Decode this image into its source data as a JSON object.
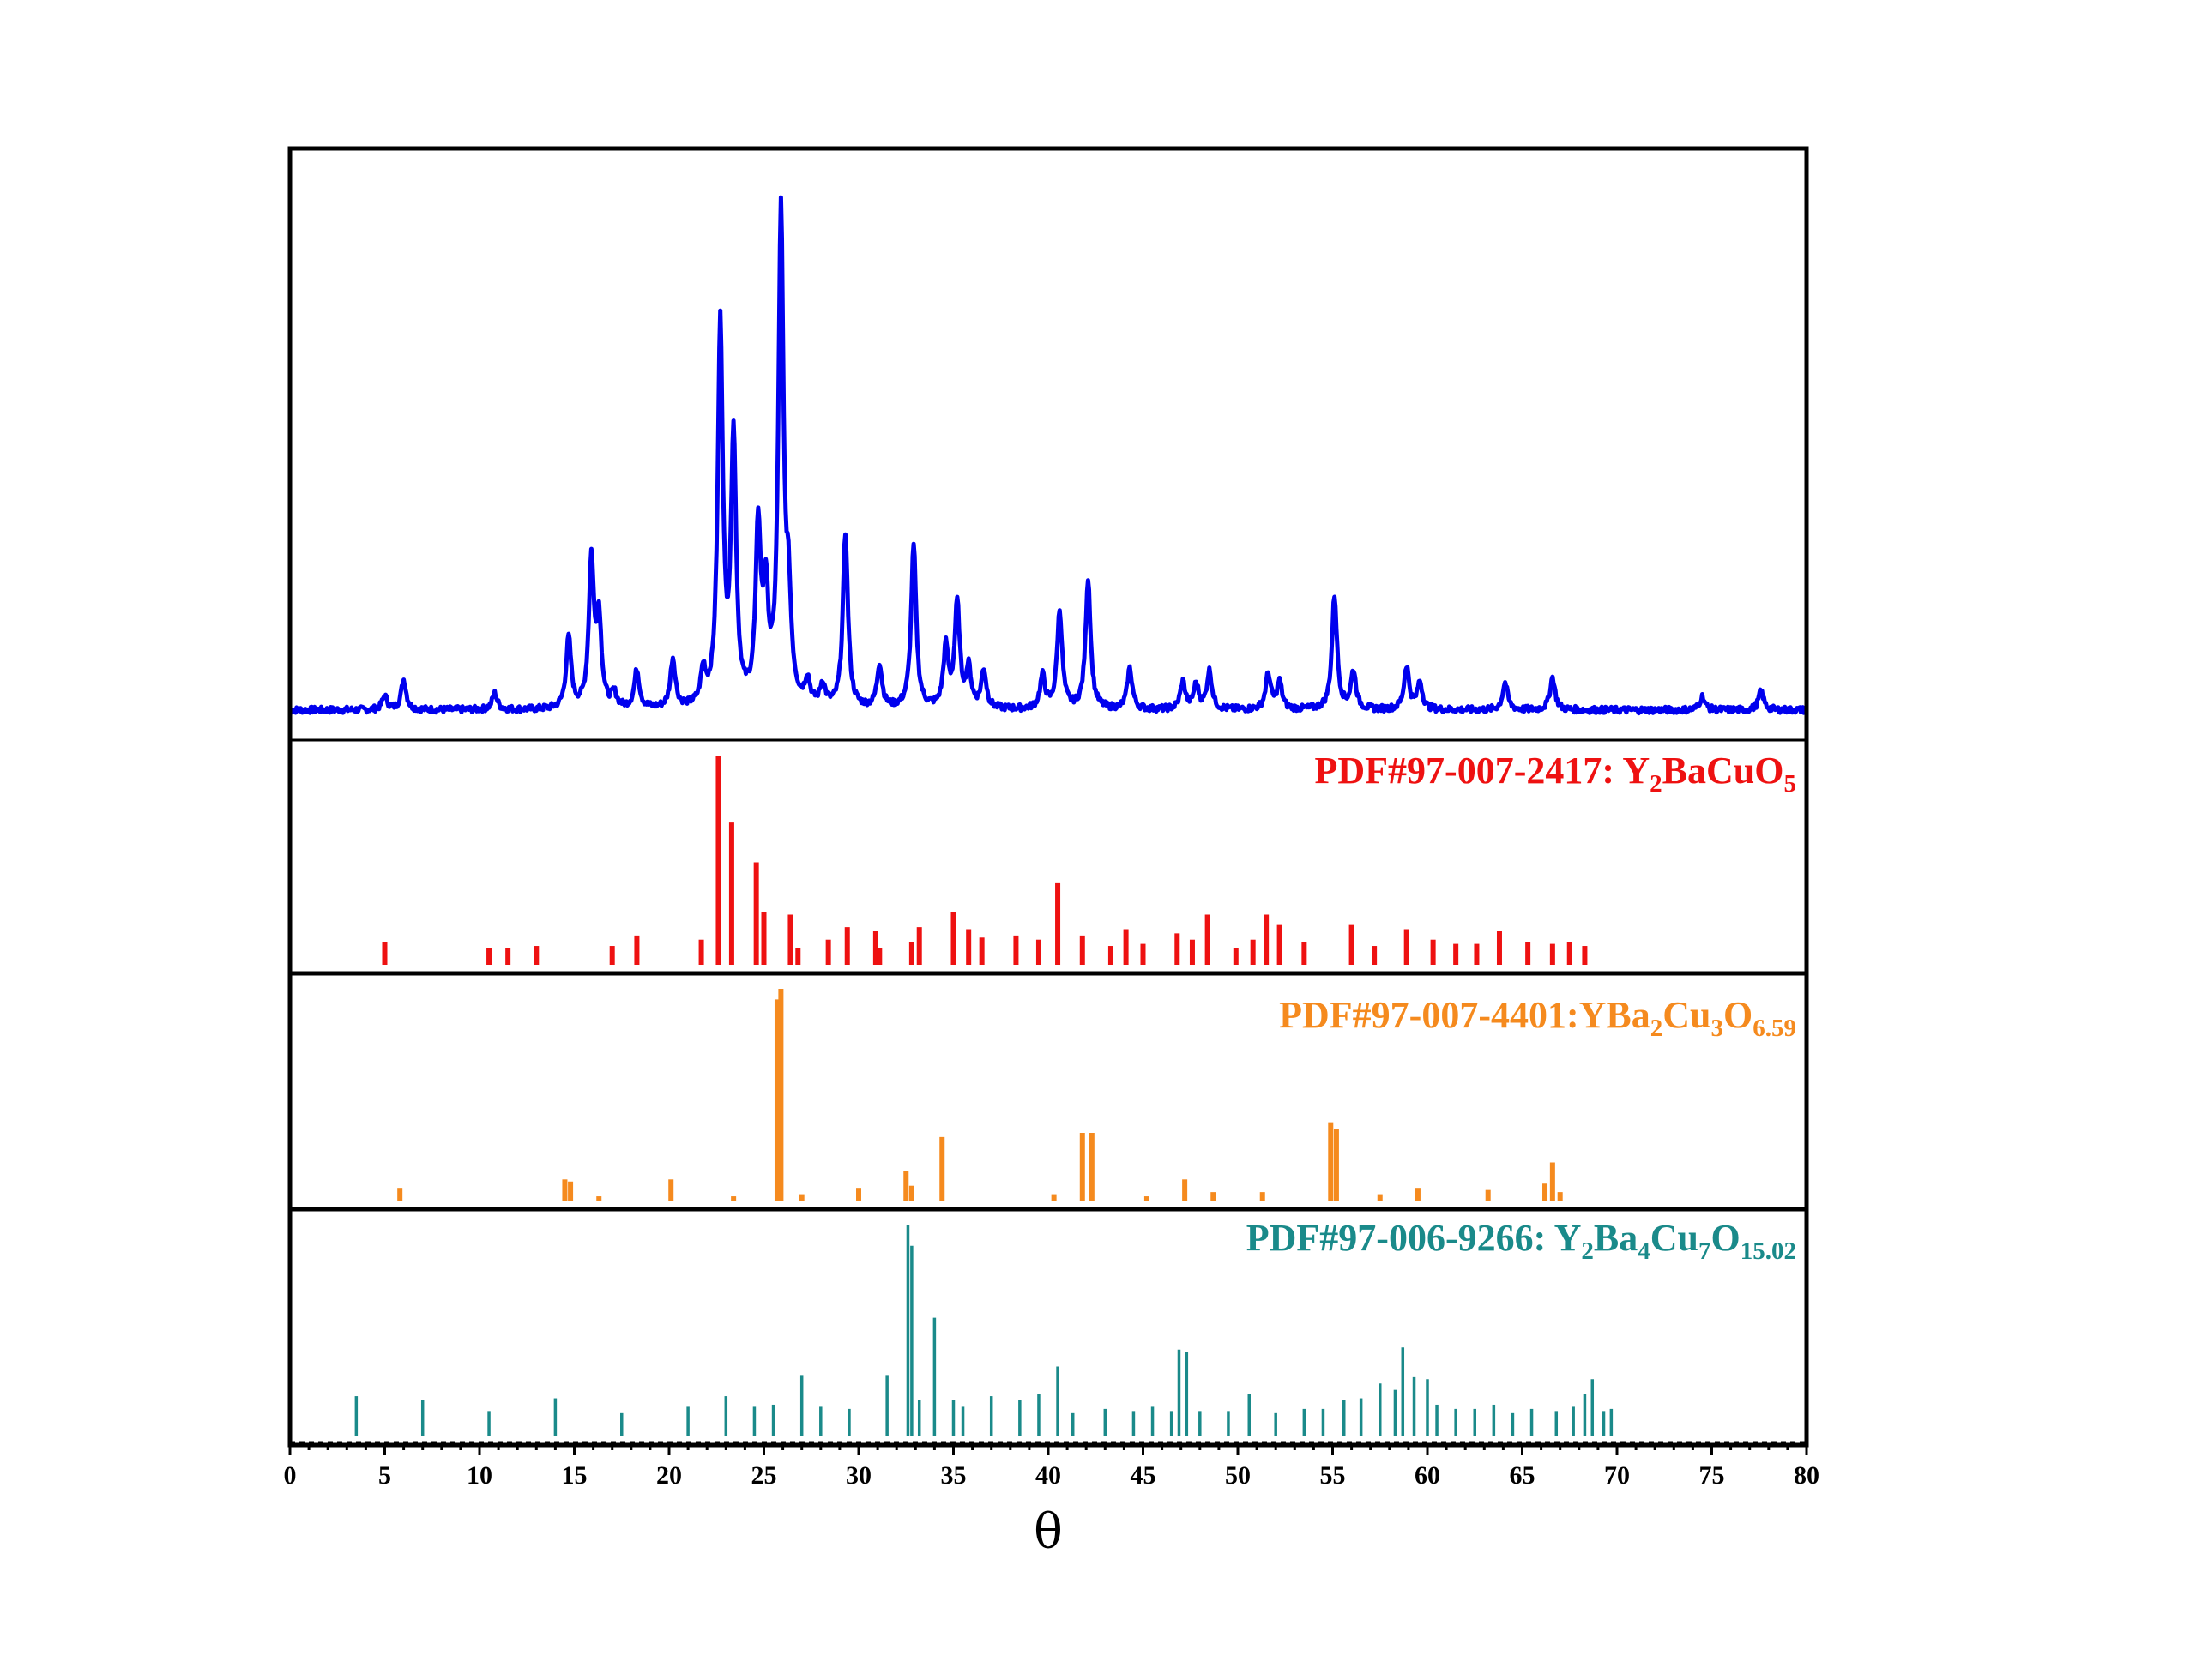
{
  "chart_data": {
    "type": "line",
    "xlabel": "θ",
    "ylabel": "",
    "xlim": [
      0,
      80
    ],
    "x_ticks": [
      0,
      5,
      10,
      15,
      20,
      25,
      30,
      35,
      40,
      45,
      50,
      55,
      60,
      65,
      70,
      75,
      80
    ],
    "grid": false,
    "panels": [
      {
        "name": "",
        "kind": "line",
        "color": "#0000ee",
        "ylim": [
          0,
          1.0
        ],
        "peaks": [
          [
            5,
            0.025
          ],
          [
            6,
            0.055
          ],
          [
            10.8,
            0.03
          ],
          [
            14.7,
            0.13
          ],
          [
            15.9,
            0.27
          ],
          [
            16.3,
            0.16
          ],
          [
            17.1,
            0.025
          ],
          [
            18.3,
            0.07
          ],
          [
            20.2,
            0.09
          ],
          [
            21.8,
            0.06
          ],
          [
            22.7,
            0.7
          ],
          [
            23.4,
            0.49
          ],
          [
            24.7,
            0.32
          ],
          [
            25.1,
            0.19
          ],
          [
            25.9,
            0.9
          ],
          [
            26.3,
            0.17
          ],
          [
            27.3,
            0.045
          ],
          [
            28.1,
            0.04
          ],
          [
            29.3,
            0.32
          ],
          [
            31.1,
            0.08
          ],
          [
            32.9,
            0.3
          ],
          [
            34.6,
            0.11
          ],
          [
            35.2,
            0.19
          ],
          [
            35.8,
            0.07
          ],
          [
            36.6,
            0.07
          ],
          [
            39.7,
            0.06
          ],
          [
            40.6,
            0.18
          ],
          [
            42.1,
            0.24
          ],
          [
            44.3,
            0.075
          ],
          [
            47.1,
            0.05
          ],
          [
            47.8,
            0.045
          ],
          [
            48.5,
            0.07
          ],
          [
            51.6,
            0.065
          ],
          [
            52.2,
            0.05
          ],
          [
            55.1,
            0.21
          ],
          [
            56.1,
            0.07
          ],
          [
            58.9,
            0.08
          ],
          [
            59.6,
            0.05
          ],
          [
            64.1,
            0.05
          ],
          [
            66.6,
            0.06
          ],
          [
            77.6,
            0.035
          ],
          [
            74.5,
            0.025
          ]
        ]
      },
      {
        "name": "PDF#97-007-2417: Y2BaCuO5",
        "label_main": "PDF#97-007-2417: Y",
        "label_parts": [
          "2",
          "BaCuO",
          "5"
        ],
        "kind": "sticks",
        "color": "#ee1111",
        "ylim": [
          0,
          1.0
        ],
        "sticks": [
          [
            5,
            0.11
          ],
          [
            10.5,
            0.08
          ],
          [
            11.5,
            0.08
          ],
          [
            13,
            0.09
          ],
          [
            17,
            0.09
          ],
          [
            18.3,
            0.14
          ],
          [
            21.7,
            0.12
          ],
          [
            22.6,
            1.0
          ],
          [
            23.3,
            0.68
          ],
          [
            24.6,
            0.49
          ],
          [
            25,
            0.25
          ],
          [
            26.4,
            0.24
          ],
          [
            26.8,
            0.08
          ],
          [
            28.4,
            0.12
          ],
          [
            29.4,
            0.18
          ],
          [
            30.9,
            0.16
          ],
          [
            31.1,
            0.08
          ],
          [
            32.8,
            0.11
          ],
          [
            33.2,
            0.18
          ],
          [
            35,
            0.25
          ],
          [
            35.8,
            0.17
          ],
          [
            36.5,
            0.13
          ],
          [
            38.3,
            0.14
          ],
          [
            39.5,
            0.12
          ],
          [
            40.5,
            0.39
          ],
          [
            41.8,
            0.14
          ],
          [
            43.3,
            0.09
          ],
          [
            44.1,
            0.17
          ],
          [
            45,
            0.1
          ],
          [
            46.8,
            0.15
          ],
          [
            47.6,
            0.12
          ],
          [
            48.4,
            0.24
          ],
          [
            49.9,
            0.08
          ],
          [
            50.8,
            0.12
          ],
          [
            51.5,
            0.24
          ],
          [
            52.2,
            0.19
          ],
          [
            53.5,
            0.11
          ],
          [
            56,
            0.19
          ],
          [
            57.2,
            0.09
          ],
          [
            58.9,
            0.17
          ],
          [
            60.3,
            0.12
          ],
          [
            61.5,
            0.1
          ],
          [
            62.6,
            0.1
          ],
          [
            63.8,
            0.16
          ],
          [
            65.3,
            0.11
          ],
          [
            66.6,
            0.1
          ],
          [
            67.5,
            0.11
          ],
          [
            68.3,
            0.09
          ]
        ]
      },
      {
        "name": "PDF#97-007-4401:YBa2Cu3O6.59",
        "label_main": "PDF#97-007-4401:YBa",
        "label_parts": [
          "2",
          "Cu",
          "3",
          "O",
          "6.59"
        ],
        "kind": "sticks",
        "color": "#f58a1e",
        "ylim": [
          0,
          1.0
        ],
        "sticks": [
          [
            5.8,
            0.06
          ],
          [
            14.5,
            0.1
          ],
          [
            14.8,
            0.09
          ],
          [
            16.3,
            0.02
          ],
          [
            20.1,
            0.1
          ],
          [
            23.4,
            0.02
          ],
          [
            25.7,
            0.95
          ],
          [
            25.9,
            1.0
          ],
          [
            27,
            0.03
          ],
          [
            30,
            0.06
          ],
          [
            32.5,
            0.14
          ],
          [
            32.8,
            0.07
          ],
          [
            34.4,
            0.3
          ],
          [
            40.3,
            0.03
          ],
          [
            41.8,
            0.32
          ],
          [
            42.3,
            0.32
          ],
          [
            45.2,
            0.02
          ],
          [
            47.2,
            0.1
          ],
          [
            48.7,
            0.04
          ],
          [
            51.3,
            0.04
          ],
          [
            54.9,
            0.37
          ],
          [
            55.2,
            0.34
          ],
          [
            57.5,
            0.03
          ],
          [
            59.5,
            0.06
          ],
          [
            63.2,
            0.05
          ],
          [
            66.2,
            0.08
          ],
          [
            66.6,
            0.18
          ],
          [
            67,
            0.04
          ]
        ]
      },
      {
        "name": "PDF#97-006-9266: Y2Ba4Cu7O15.02",
        "label_main": "PDF#97-006-9266: Y",
        "label_parts": [
          "2",
          "Ba",
          "4",
          "Cu",
          "7",
          "O",
          "15.02"
        ],
        "kind": "sticks",
        "color": "#1a8a8a",
        "ylim": [
          0,
          1.0
        ],
        "sticks": [
          [
            3.5,
            0.19
          ],
          [
            7,
            0.17
          ],
          [
            10.5,
            0.12
          ],
          [
            14,
            0.18
          ],
          [
            17.5,
            0.11
          ],
          [
            21,
            0.14
          ],
          [
            23,
            0.19
          ],
          [
            24.5,
            0.14
          ],
          [
            25.5,
            0.15
          ],
          [
            27,
            0.29
          ],
          [
            28,
            0.14
          ],
          [
            29.5,
            0.13
          ],
          [
            31.5,
            0.29
          ],
          [
            32.6,
            1.0
          ],
          [
            32.8,
            0.9
          ],
          [
            33.2,
            0.17
          ],
          [
            34,
            0.56
          ],
          [
            35,
            0.17
          ],
          [
            35.5,
            0.14
          ],
          [
            37,
            0.19
          ],
          [
            38.5,
            0.17
          ],
          [
            39.5,
            0.2
          ],
          [
            40.5,
            0.33
          ],
          [
            41.3,
            0.11
          ],
          [
            43,
            0.13
          ],
          [
            44.5,
            0.12
          ],
          [
            45.5,
            0.14
          ],
          [
            46.5,
            0.12
          ],
          [
            46.9,
            0.41
          ],
          [
            47.3,
            0.4
          ],
          [
            48,
            0.12
          ],
          [
            49.5,
            0.12
          ],
          [
            50.6,
            0.2
          ],
          [
            52,
            0.11
          ],
          [
            53.5,
            0.13
          ],
          [
            54.5,
            0.13
          ],
          [
            55.6,
            0.17
          ],
          [
            56.5,
            0.18
          ],
          [
            57.5,
            0.25
          ],
          [
            58.3,
            0.22
          ],
          [
            58.7,
            0.42
          ],
          [
            59.3,
            0.28
          ],
          [
            60,
            0.27
          ],
          [
            60.5,
            0.15
          ],
          [
            61.5,
            0.13
          ],
          [
            62.5,
            0.13
          ],
          [
            63.5,
            0.15
          ],
          [
            64.5,
            0.11
          ],
          [
            65.5,
            0.13
          ],
          [
            66.8,
            0.12
          ],
          [
            67.7,
            0.14
          ],
          [
            68.3,
            0.2
          ],
          [
            68.7,
            0.27
          ],
          [
            69.3,
            0.12
          ],
          [
            69.7,
            0.13
          ]
        ]
      }
    ]
  }
}
